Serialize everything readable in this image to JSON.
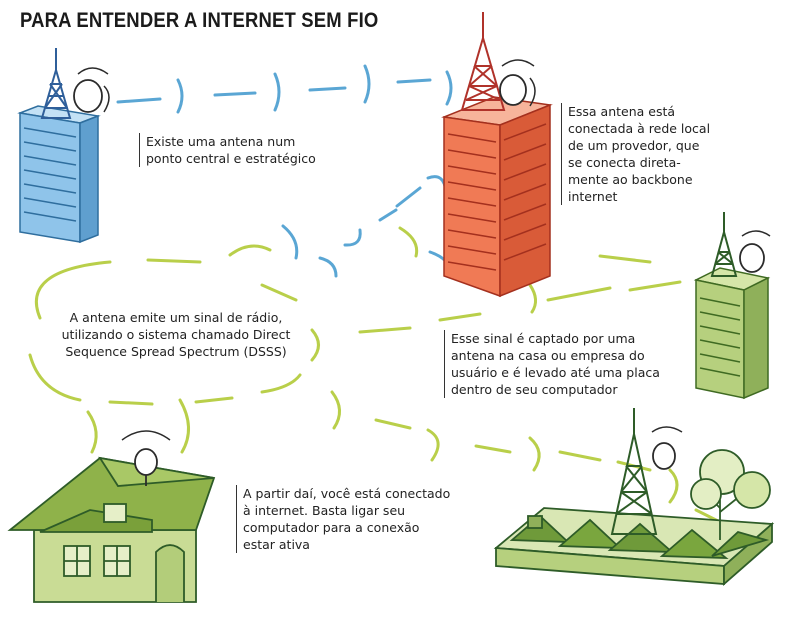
{
  "title": "PARA ENTENDER A INTERNET SEM FIO",
  "captions": {
    "antenna_central": "Existe uma antena num\nponto central e estratégico",
    "provider_antenna": "Essa antena está\nconectada à rede local\nde um provedor, que\nse conecta direta-\nmente ao backbone\ninternet",
    "radio_signal": "A antena emite um sinal de rádio,\nutilizando o sistema chamado Direct\nSequence Spread Spectrum (DSSS)",
    "signal_captured": "Esse sinal é captado por uma\nantena na casa ou empresa do\nusuário e é levado até uma placa\ndentro de seu computador",
    "from_there": "A partir daí, você está conectado\nà internet. Basta ligar seu\ncomputador para a conexão\nestar ativa"
  },
  "colors": {
    "blue_building": "#8fc4ea",
    "orange_building": "#f07a55",
    "green_building": "#b6d07e",
    "blue_wave": "#5aa6d4",
    "green_wave": "#b9cf4a",
    "dark_green": "#2e5c28",
    "tower_blue": "#2f5f9a",
    "tower_red": "#b0322a"
  },
  "icons": [
    "antenna-tower-icon",
    "satellite-dish-icon",
    "house-icon",
    "building-icon",
    "tree-icon"
  ]
}
